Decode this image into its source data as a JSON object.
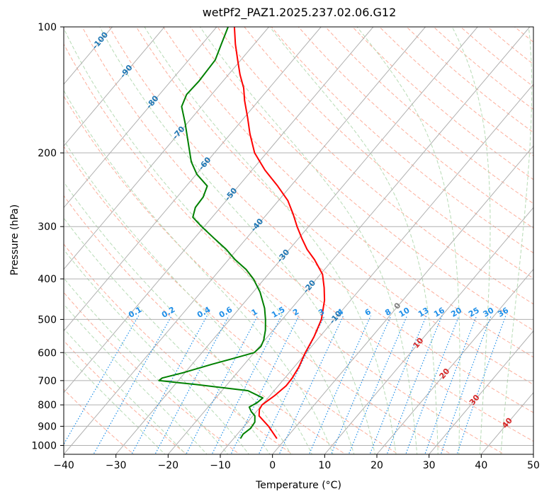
{
  "chart_data": {
    "type": "line",
    "subtype": "skew-t log-p diagram",
    "title": "wetPf2_PAZ1.2025.237.02.06.G12",
    "xlabel": "Temperature (°C)",
    "ylabel": "Pressure (hPa)",
    "xlim": [
      -40,
      50
    ],
    "ylim": [
      1050,
      100
    ],
    "y_scale": "log",
    "grid": true,
    "x_ticks": [
      -40,
      -30,
      -20,
      -10,
      0,
      10,
      20,
      30,
      40,
      50
    ],
    "y_ticks": [
      1000,
      900,
      800,
      700,
      600,
      500,
      400,
      300,
      200,
      100
    ],
    "isotherm_labels": [
      "-100",
      "-90",
      "-80",
      "-70",
      "-60",
      "-50",
      "-40",
      "-30",
      "-20",
      "-10",
      "0",
      "10",
      "20",
      "30",
      "40"
    ],
    "mixing_ratio_labels": [
      "0.1",
      "0.2",
      "0.4",
      "0.6",
      "1",
      "1.5",
      "2",
      "3",
      "4",
      "6",
      "8",
      "10",
      "13",
      "16",
      "20",
      "25",
      "30",
      "36"
    ],
    "colors": {
      "temperature": "#ff0000",
      "dewpoint": "#008000",
      "isotherm_label_cold": "#1f77b4",
      "isotherm_label_warm": "#d62728",
      "isotherm_label_zero": "#7f7f7f",
      "dry_adiabat": "#fdae9b",
      "moist_adiabat": "#b7dbb5",
      "mixing_ratio": "#1f8fe8",
      "grid": "#b0b0b0"
    },
    "series": [
      {
        "key": "temperature",
        "points": [
          [
            963,
            -1.7
          ],
          [
            900,
            -5.3
          ],
          [
            850,
            -8.8
          ],
          [
            820,
            -9.8
          ],
          [
            800,
            -10.0
          ],
          [
            760,
            -9.1
          ],
          [
            720,
            -8.5
          ],
          [
            690,
            -8.6
          ],
          [
            650,
            -9.1
          ],
          [
            600,
            -10.2
          ],
          [
            550,
            -11.1
          ],
          [
            500,
            -12.5
          ],
          [
            450,
            -15.0
          ],
          [
            420,
            -17.1
          ],
          [
            390,
            -19.6
          ],
          [
            360,
            -23.5
          ],
          [
            340,
            -26.6
          ],
          [
            320,
            -29.4
          ],
          [
            300,
            -32.2
          ],
          [
            280,
            -35.0
          ],
          [
            260,
            -38.2
          ],
          [
            240,
            -42.5
          ],
          [
            220,
            -47.5
          ],
          [
            200,
            -52.3
          ],
          [
            180,
            -56.3
          ],
          [
            165,
            -59.3
          ],
          [
            150,
            -62.7
          ],
          [
            140,
            -64.9
          ],
          [
            130,
            -67.8
          ],
          [
            120,
            -70.6
          ],
          [
            110,
            -73.6
          ],
          [
            100,
            -76.6
          ]
        ]
      },
      {
        "key": "dewpoint",
        "points": [
          [
            963,
            -8.7
          ],
          [
            940,
            -8.9
          ],
          [
            910,
            -8.4
          ],
          [
            880,
            -8.6
          ],
          [
            850,
            -9.6
          ],
          [
            830,
            -11.0
          ],
          [
            810,
            -12.1
          ],
          [
            790,
            -11.3
          ],
          [
            770,
            -11.0
          ],
          [
            740,
            -15.0
          ],
          [
            715,
            -26.1
          ],
          [
            700,
            -33.7
          ],
          [
            690,
            -33.5
          ],
          [
            670,
            -30.3
          ],
          [
            640,
            -26.2
          ],
          [
            620,
            -23.1
          ],
          [
            600,
            -20.0
          ],
          [
            580,
            -19.7
          ],
          [
            560,
            -20.2
          ],
          [
            530,
            -21.5
          ],
          [
            500,
            -23.2
          ],
          [
            470,
            -25.2
          ],
          [
            430,
            -28.7
          ],
          [
            400,
            -32.1
          ],
          [
            380,
            -35.0
          ],
          [
            360,
            -38.7
          ],
          [
            340,
            -42.1
          ],
          [
            320,
            -46.2
          ],
          [
            300,
            -50.5
          ],
          [
            285,
            -53.7
          ],
          [
            270,
            -54.8
          ],
          [
            255,
            -55.0
          ],
          [
            240,
            -56.0
          ],
          [
            225,
            -59.9
          ],
          [
            210,
            -63.0
          ],
          [
            190,
            -66.5
          ],
          [
            170,
            -70.4
          ],
          [
            155,
            -73.8
          ],
          [
            145,
            -74.8
          ],
          [
            135,
            -74.6
          ],
          [
            120,
            -74.9
          ],
          [
            110,
            -76.3
          ],
          [
            100,
            -77.8
          ]
        ]
      }
    ]
  }
}
